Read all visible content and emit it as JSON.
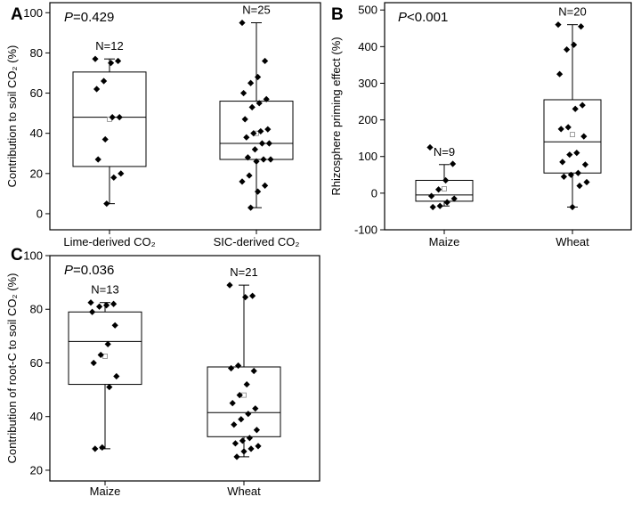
{
  "chart_data": [
    {
      "panel": "A",
      "type": "box",
      "ylabel": "Contribution to soil CO₂ (%)",
      "ylim": [
        -8,
        105
      ],
      "yticks": [
        0,
        20,
        40,
        60,
        80,
        100
      ],
      "tick_labels": [
        "0",
        "20",
        "40",
        "60",
        "80",
        "100"
      ],
      "p_prefix": "P",
      "p_rest": "=0.429",
      "categories": [
        "Lime-derived CO₂",
        "SIC-derived CO₂"
      ],
      "boxes": [
        {
          "n_label": "N=12",
          "whisker_low": 5,
          "q1": 23.5,
          "median": 48,
          "q3": 70.5,
          "whisker_high": 77,
          "mean": 47,
          "points": [
            77,
            76,
            75,
            66,
            62,
            48,
            48,
            37,
            27,
            20,
            18,
            5
          ]
        },
        {
          "n_label": "N=25",
          "whisker_low": 3,
          "q1": 27,
          "median": 35,
          "q3": 56,
          "whisker_high": 95,
          "mean": 40,
          "points": [
            95,
            76,
            68,
            65,
            60,
            57,
            55,
            53,
            47,
            42,
            41,
            40,
            38,
            35,
            35,
            32,
            28,
            27,
            27,
            26,
            19,
            16,
            14,
            11,
            3
          ]
        }
      ]
    },
    {
      "panel": "B",
      "type": "box",
      "ylabel": "Rhizosphere priming effect (%)",
      "ylim": [
        -100,
        520
      ],
      "yticks": [
        -100,
        0,
        100,
        200,
        300,
        400,
        500
      ],
      "tick_labels": [
        "-100",
        "0",
        "100",
        "200",
        "300",
        "400",
        "500"
      ],
      "p_prefix": "P",
      "p_rest": "<0.001",
      "categories": [
        "Maize",
        "Wheat"
      ],
      "boxes": [
        {
          "n_label": "N=9",
          "whisker_low": -35,
          "q1": -22,
          "median": -5,
          "q3": 35,
          "whisker_high": 78,
          "mean": 12,
          "points": [
            125,
            80,
            35,
            10,
            -8,
            -15,
            -25,
            -35,
            -38
          ]
        },
        {
          "n_label": "N=20",
          "whisker_low": -38,
          "q1": 55,
          "median": 140,
          "q3": 255,
          "whisker_high": 460,
          "mean": 160,
          "points": [
            460,
            455,
            405,
            392,
            325,
            240,
            230,
            180,
            175,
            155,
            110,
            105,
            85,
            78,
            55,
            50,
            45,
            30,
            20,
            -38
          ]
        }
      ]
    },
    {
      "panel": "C",
      "type": "box",
      "ylabel": "Contribution of root-C to soil CO₂ (%)",
      "ylim": [
        16,
        100
      ],
      "yticks": [
        20,
        40,
        60,
        80,
        100
      ],
      "tick_labels": [
        "20",
        "40",
        "60",
        "80",
        "100"
      ],
      "p_prefix": "P",
      "p_rest": "=0.036",
      "categories": [
        "Maize",
        "Wheat"
      ],
      "boxes": [
        {
          "n_label": "N=13",
          "whisker_low": 28,
          "q1": 52,
          "median": 68,
          "q3": 79,
          "whisker_high": 82.5,
          "mean": 62.5,
          "points": [
            82.5,
            82,
            81.5,
            81,
            79,
            74,
            67,
            63,
            60,
            55,
            51,
            28.5,
            28
          ]
        },
        {
          "n_label": "N=21",
          "whisker_low": 25,
          "q1": 32.5,
          "median": 41.5,
          "q3": 58.5,
          "whisker_high": 89,
          "mean": 48,
          "points": [
            89,
            85,
            84.5,
            59,
            58,
            57,
            52,
            48,
            45,
            43,
            41,
            39,
            37,
            35,
            32,
            31,
            30,
            29,
            28,
            27,
            25
          ]
        }
      ]
    }
  ]
}
